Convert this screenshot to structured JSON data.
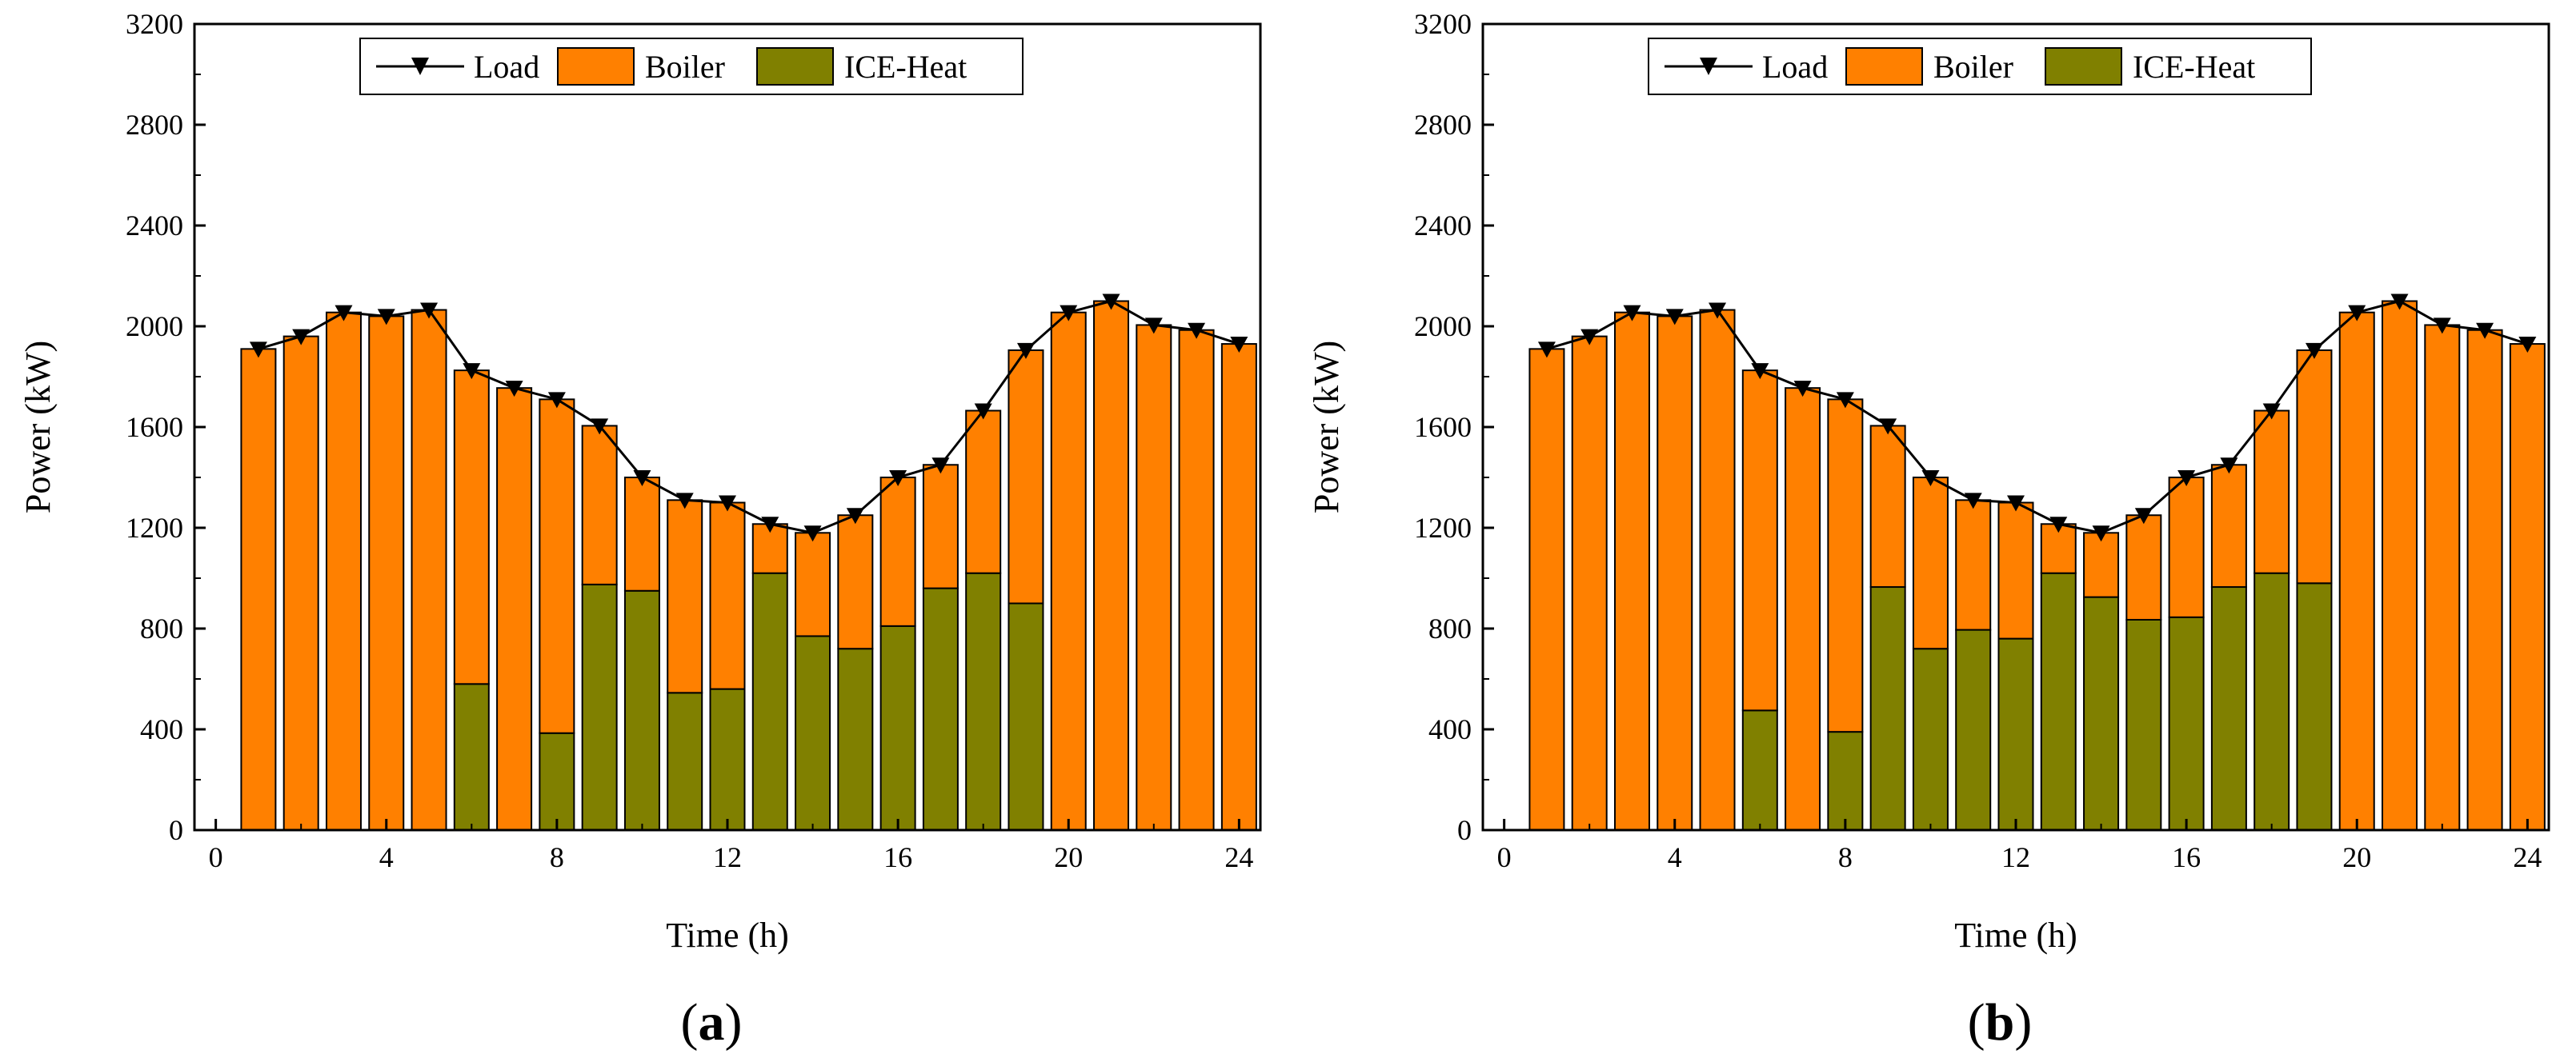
{
  "chart_data": [
    {
      "type": "bar",
      "stacked": true,
      "panel_label": {
        "open": "(",
        "letter": "a",
        "close": ")"
      },
      "xlabel": "Time (h)",
      "ylabel": "Power (kW)",
      "xlim": [
        -0.5,
        24.5
      ],
      "ylim": [
        0,
        3200
      ],
      "xticks": [
        0,
        4,
        8,
        12,
        16,
        20,
        24
      ],
      "yticks": [
        0,
        400,
        800,
        1200,
        1600,
        2000,
        2400,
        2800,
        3200
      ],
      "legend": {
        "position": "top-center",
        "entries": [
          "Load",
          "Boiler",
          "ICE-Heat"
        ]
      },
      "hours": [
        1,
        2,
        3,
        4,
        5,
        6,
        7,
        8,
        9,
        10,
        11,
        12,
        13,
        14,
        15,
        16,
        17,
        18,
        19,
        20,
        21,
        22,
        23,
        24
      ],
      "series": [
        {
          "name": "ICE-Heat",
          "kind": "bar",
          "color": "#808000",
          "values": [
            0,
            0,
            0,
            0,
            0,
            580,
            0,
            385,
            975,
            950,
            545,
            560,
            1020,
            770,
            720,
            810,
            960,
            1020,
            900,
            0,
            0,
            0,
            0,
            0
          ]
        },
        {
          "name": "Boiler",
          "kind": "bar",
          "color": "#FF8000",
          "values": [
            1910,
            1960,
            2055,
            2040,
            2065,
            1245,
            1755,
            1325,
            630,
            450,
            765,
            740,
            195,
            410,
            530,
            590,
            490,
            645,
            1005,
            2055,
            2100,
            2005,
            1985,
            1930
          ]
        },
        {
          "name": "Load",
          "kind": "line",
          "marker": "down-triangle",
          "color": "#000000",
          "values": [
            1910,
            1960,
            2055,
            2040,
            2065,
            1825,
            1755,
            1710,
            1605,
            1400,
            1310,
            1300,
            1215,
            1180,
            1250,
            1400,
            1450,
            1665,
            1905,
            2055,
            2100,
            2005,
            1985,
            1930
          ]
        }
      ]
    },
    {
      "type": "bar",
      "stacked": true,
      "panel_label": {
        "open": "(",
        "letter": "b",
        "close": ")"
      },
      "xlabel": "Time (h)",
      "ylabel": "Power (kW)",
      "xlim": [
        -0.5,
        24.5
      ],
      "ylim": [
        0,
        3200
      ],
      "xticks": [
        0,
        4,
        8,
        12,
        16,
        20,
        24
      ],
      "yticks": [
        0,
        400,
        800,
        1200,
        1600,
        2000,
        2400,
        2800,
        3200
      ],
      "legend": {
        "position": "top-center",
        "entries": [
          "Load",
          "Boiler",
          "ICE-Heat"
        ]
      },
      "hours": [
        1,
        2,
        3,
        4,
        5,
        6,
        7,
        8,
        9,
        10,
        11,
        12,
        13,
        14,
        15,
        16,
        17,
        18,
        19,
        20,
        21,
        22,
        23,
        24
      ],
      "series": [
        {
          "name": "ICE-Heat",
          "kind": "bar",
          "color": "#808000",
          "values": [
            0,
            0,
            0,
            0,
            0,
            475,
            0,
            390,
            965,
            720,
            795,
            760,
            1020,
            925,
            835,
            845,
            965,
            1020,
            980,
            0,
            0,
            0,
            0,
            0
          ]
        },
        {
          "name": "Boiler",
          "kind": "bar",
          "color": "#FF8000",
          "values": [
            1910,
            1960,
            2055,
            2040,
            2065,
            1350,
            1755,
            1320,
            640,
            680,
            515,
            540,
            195,
            255,
            415,
            555,
            485,
            645,
            925,
            2055,
            2100,
            2005,
            1985,
            1930
          ]
        },
        {
          "name": "Load",
          "kind": "line",
          "marker": "down-triangle",
          "color": "#000000",
          "values": [
            1910,
            1960,
            2055,
            2040,
            2065,
            1825,
            1755,
            1710,
            1605,
            1400,
            1310,
            1300,
            1215,
            1180,
            1250,
            1400,
            1450,
            1665,
            1905,
            2055,
            2100,
            2005,
            1985,
            1930
          ]
        }
      ]
    }
  ]
}
